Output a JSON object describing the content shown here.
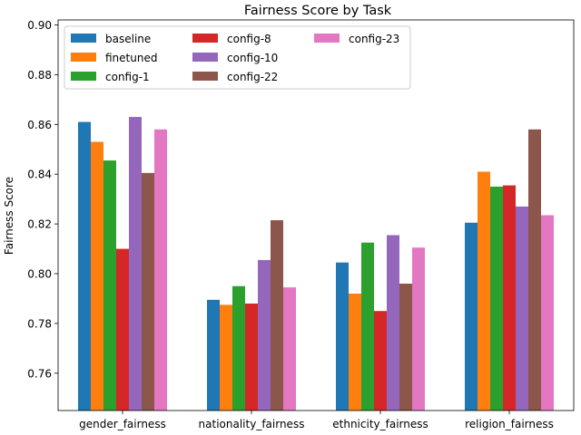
{
  "chart_data": {
    "type": "bar",
    "title": "Fairness Score by Task",
    "xlabel": "",
    "ylabel": "Fairness Score",
    "ylim": [
      0.745,
      0.902
    ],
    "yticks": [
      0.76,
      0.78,
      0.8,
      0.82,
      0.84,
      0.86,
      0.88,
      0.9
    ],
    "ytick_labels": [
      "0.76",
      "0.78",
      "0.80",
      "0.82",
      "0.84",
      "0.86",
      "0.88",
      "0.90"
    ],
    "categories": [
      "gender_fairness",
      "nationality_fairness",
      "ethnicity_fairness",
      "religion_fairness"
    ],
    "grid": false,
    "legend_position": "top-left",
    "legend_columns": 3,
    "series": [
      {
        "name": "baseline",
        "color": "#1f77b4",
        "values": [
          0.861,
          0.7895,
          0.8045,
          0.8205
        ]
      },
      {
        "name": "finetuned",
        "color": "#ff7f0e",
        "values": [
          0.853,
          0.7875,
          0.792,
          0.841
        ]
      },
      {
        "name": "config-1",
        "color": "#2ca02c",
        "values": [
          0.8455,
          0.795,
          0.8125,
          0.835
        ]
      },
      {
        "name": "config-8",
        "color": "#d62728",
        "values": [
          0.81,
          0.788,
          0.785,
          0.8355
        ]
      },
      {
        "name": "config-10",
        "color": "#9467bd",
        "values": [
          0.863,
          0.8055,
          0.8155,
          0.827
        ]
      },
      {
        "name": "config-22",
        "color": "#8c564b",
        "values": [
          0.8405,
          0.8215,
          0.796,
          0.858
        ]
      },
      {
        "name": "config-23",
        "color": "#e377c2",
        "values": [
          0.858,
          0.7945,
          0.8105,
          0.8235
        ]
      }
    ]
  }
}
